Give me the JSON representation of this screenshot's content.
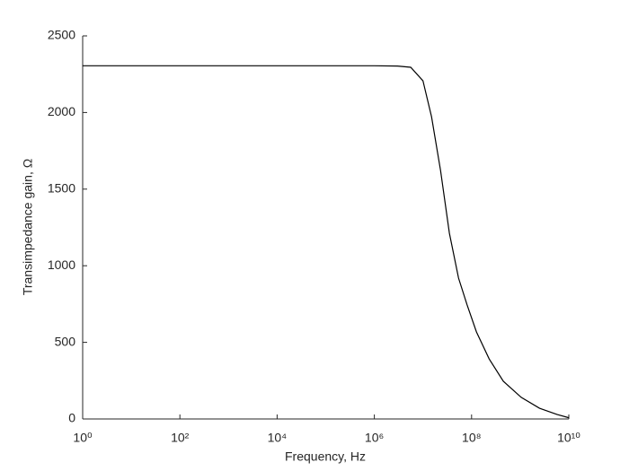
{
  "chart_data": {
    "type": "line",
    "xlabel": "Frequency, Hz",
    "ylabel": "Transimpedance gain, Ω",
    "xscale": "log",
    "x": [
      1,
      10,
      100,
      1000,
      10000,
      100000,
      1000000,
      3000000,
      5600000,
      10000000,
      15000000,
      23000000,
      35000000,
      54000000,
      81000000,
      126000000,
      230000000,
      450000000,
      1050000000,
      2500000000,
      5800000000,
      10000000000
    ],
    "series": [
      {
        "color": "#000000",
        "values": [
          2305,
          2305,
          2305,
          2305,
          2305,
          2305,
          2305,
          2303,
          2295,
          2207,
          1973,
          1622,
          1212,
          919,
          744,
          568,
          392,
          246,
          141,
          70,
          29,
          8
        ]
      }
    ],
    "xlim": [
      1,
      10000000000
    ],
    "xticks": [
      {
        "value": 1,
        "label": "10⁰"
      },
      {
        "value": 100,
        "label": "10²"
      },
      {
        "value": 10000,
        "label": "10⁴"
      },
      {
        "value": 1000000,
        "label": "10⁶"
      },
      {
        "value": 100000000,
        "label": "10⁸"
      },
      {
        "value": 10000000000,
        "label": "10¹⁰"
      }
    ],
    "ylim": [
      0,
      2500
    ],
    "yticks": [
      0,
      500,
      1000,
      1500,
      2000,
      2500
    ]
  }
}
